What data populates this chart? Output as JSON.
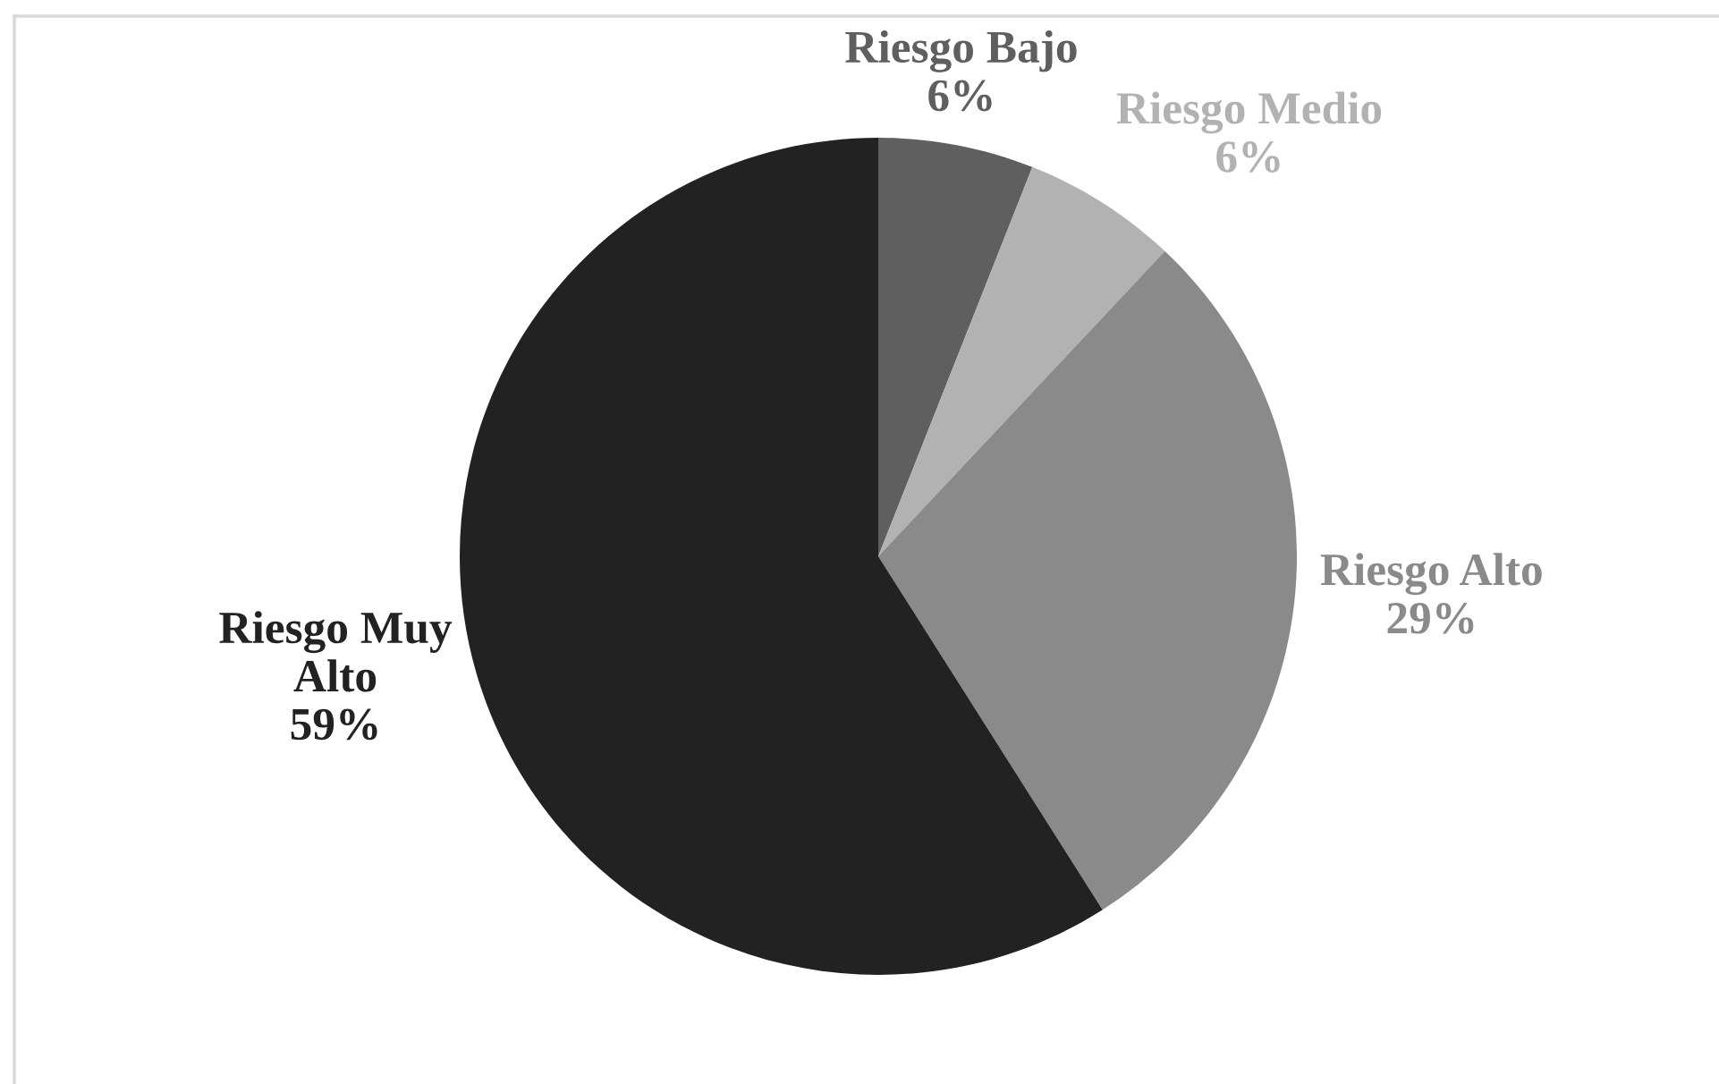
{
  "chart_data": {
    "type": "pie",
    "categories": [
      "Riesgo Bajo",
      "Riesgo Medio",
      "Riesgo Alto",
      "Riesgo Muy Alto"
    ],
    "values": [
      6,
      6,
      29,
      59
    ],
    "colors": [
      "#5f5f5f",
      "#b2b2b2",
      "#8a8a8a",
      "#222222"
    ],
    "value_labels": [
      "6%",
      "6%",
      "29%",
      "59%"
    ]
  }
}
